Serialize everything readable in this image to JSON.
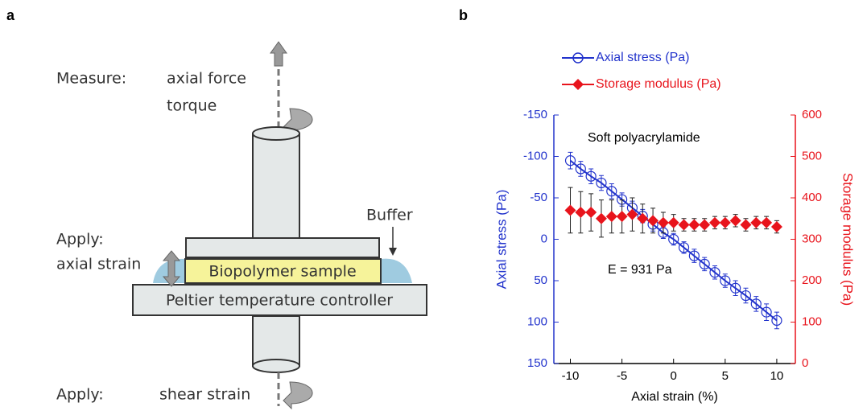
{
  "panel_labels": [
    "a",
    "b"
  ],
  "diagram": {
    "measure": "Measure:",
    "axial_force": "axial force",
    "torque": "torque",
    "apply_top": "Apply:",
    "axial_strain": "axial strain",
    "buffer": "Buffer",
    "sample": "Biopolymer sample",
    "controller": "Peltier temperature controller",
    "apply_bottom": "Apply:",
    "shear_strain": "shear strain"
  },
  "chart_data": {
    "type": "scatter",
    "x_label": "Axial strain (%)",
    "y_label": "Axial stress (Pa)",
    "y2_label": "Storage modulus (Pa)",
    "annotations": [
      "Soft polyacrylamide",
      "E = 931 Pa"
    ],
    "x": [
      -10,
      -9,
      -8,
      -7,
      -6,
      -5,
      -4,
      -3,
      -2,
      -1,
      0,
      1,
      2,
      3,
      4,
      5,
      6,
      7,
      8,
      9,
      10
    ],
    "xlim": [
      -11.6,
      11.8
    ],
    "xticks": [
      -10,
      -5,
      0,
      5,
      10
    ],
    "ylim": [
      -150,
      150
    ],
    "y_inverted": true,
    "yticks": [
      -150,
      -100,
      -50,
      0,
      50,
      100,
      150
    ],
    "y2lim": [
      0,
      600
    ],
    "y2ticks": [
      0,
      100,
      200,
      300,
      400,
      500,
      600
    ],
    "series": [
      {
        "name": "Axial stress (Pa)",
        "color": "#2233cc",
        "marker": "circle",
        "values": [
          -95,
          -85,
          -76,
          -68,
          -58,
          -48,
          -38,
          -28,
          -18,
          -8,
          0,
          10,
          20,
          30,
          40,
          50,
          59,
          68,
          78,
          88,
          98
        ],
        "errors": [
          10,
          9,
          9,
          9,
          9,
          8,
          8,
          8,
          8,
          7,
          7,
          7,
          8,
          8,
          8,
          8,
          9,
          9,
          9,
          10,
          10
        ]
      },
      {
        "name": "Storage modulus (Pa)",
        "color": "#e8141c",
        "marker": "diamond",
        "axis": "y2",
        "values": [
          370,
          365,
          365,
          350,
          355,
          355,
          360,
          350,
          345,
          340,
          340,
          335,
          335,
          335,
          340,
          340,
          345,
          335,
          340,
          340,
          330
        ],
        "errors": [
          55,
          50,
          45,
          45,
          40,
          40,
          40,
          35,
          30,
          25,
          20,
          15,
          15,
          15,
          15,
          15,
          15,
          15,
          15,
          15,
          15
        ]
      }
    ]
  }
}
